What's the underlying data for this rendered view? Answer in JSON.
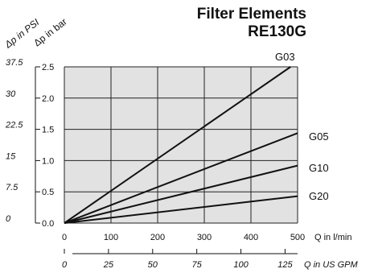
{
  "title": "Filter Elements",
  "subtitle": "RE130G",
  "chart_data": {
    "type": "line",
    "title": "Filter Elements RE130G",
    "xlabel": "Q in l/min",
    "x2label": "Q in US GPM",
    "ylabel": "Δp in bar",
    "y2label": "Δp in PSI",
    "xlim": [
      0,
      500
    ],
    "ylim": [
      0,
      2.5
    ],
    "x_ticks": [
      "0",
      "100",
      "200",
      "300",
      "400",
      "500"
    ],
    "x2_ticks": [
      "0",
      "25",
      "50",
      "75",
      "100",
      "125"
    ],
    "y_ticks": [
      "0.0",
      "0.5",
      "1.0",
      "1.5",
      "2.0",
      "2.5"
    ],
    "y2_ticks": [
      "0",
      "7.5",
      "15",
      "22.5",
      "30",
      "37.5"
    ],
    "grid": true,
    "series": [
      {
        "name": "G03",
        "x": [
          0,
          485
        ],
        "y": [
          0,
          2.5
        ]
      },
      {
        "name": "G05",
        "x": [
          0,
          500
        ],
        "y": [
          0,
          1.44
        ]
      },
      {
        "name": "G10",
        "x": [
          0,
          500
        ],
        "y": [
          0,
          0.92
        ]
      },
      {
        "name": "G20",
        "x": [
          0,
          500
        ],
        "y": [
          0,
          0.43
        ]
      }
    ]
  }
}
